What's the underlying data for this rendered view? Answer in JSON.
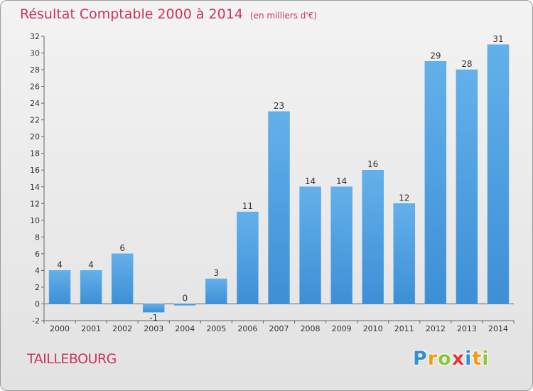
{
  "chart_data": {
    "type": "bar",
    "title": "Résultat Comptable 2000 à 2014",
    "subtitle": "(en milliers d'€)",
    "categories": [
      "2000",
      "2001",
      "2002",
      "2003",
      "2004",
      "2005",
      "2006",
      "2007",
      "2008",
      "2009",
      "2010",
      "2011",
      "2012",
      "2013",
      "2014"
    ],
    "values": [
      4,
      4,
      6,
      -1,
      0,
      3,
      11,
      23,
      14,
      14,
      16,
      12,
      29,
      28,
      31
    ],
    "data_labels": [
      "4",
      "4",
      "6",
      "-1",
      "0",
      "3",
      "11",
      "23",
      "14",
      "14",
      "16",
      "12",
      "29",
      "28",
      "31"
    ],
    "ylim": [
      -2,
      32
    ],
    "yticks": [
      -2,
      0,
      2,
      4,
      6,
      8,
      10,
      12,
      14,
      16,
      18,
      20,
      22,
      24,
      26,
      28,
      30,
      32
    ],
    "xlabel": "",
    "ylabel": "",
    "grid": false,
    "legend": "none",
    "bar_color": "#3d8fd6",
    "bar_color_light": "#63b0ea"
  },
  "commune": "TAILLEBOURG",
  "logo": {
    "letters": [
      "P",
      "r",
      "o",
      "x",
      "i",
      "t",
      "i"
    ],
    "colors": [
      "#2f8fd8",
      "#f39c12",
      "#8cc63f",
      "#e03a3a",
      "#2f8fd8",
      "#f39c12",
      "#8cc63f"
    ]
  }
}
